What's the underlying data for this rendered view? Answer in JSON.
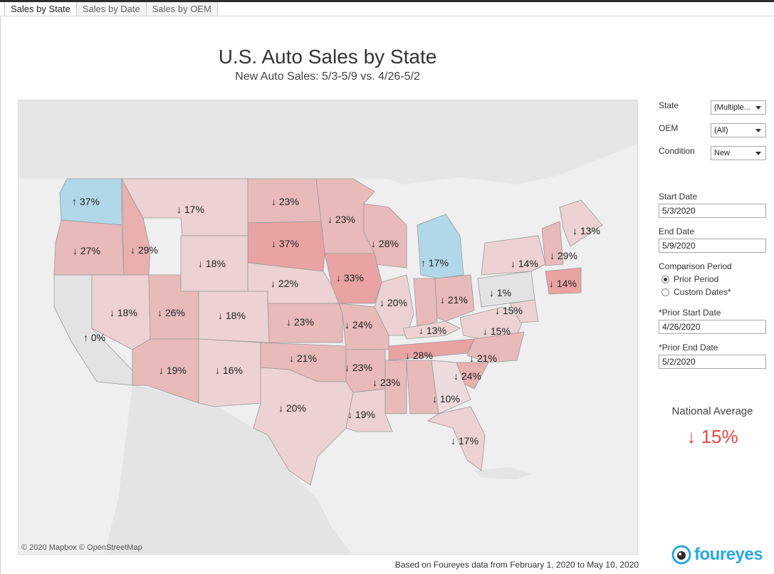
{
  "tabs": [
    {
      "label": "Sales by State",
      "active": true
    },
    {
      "label": "Sales by Date",
      "active": false
    },
    {
      "label": "Sales by OEM",
      "active": false
    }
  ],
  "title": "U.S. Auto Sales by State",
  "subtitle": "New Auto Sales: 5/3-5/9 vs. 4/26-5/2",
  "map": {
    "attribution": "© 2020 Mapbox © OpenStreetMap",
    "colors": {
      "water": "#efefef",
      "land": "#e2e2e2",
      "decline_light": "#ecd2d2",
      "decline_mid": "#e8baba",
      "decline_strong": "#e9a3a3",
      "increase": "#b0d8e8",
      "neutral": "#e3e3e3"
    },
    "labels": [
      {
        "state": "WA",
        "arrow": "↑",
        "value": "37%"
      },
      {
        "state": "MT",
        "arrow": "↓",
        "value": "17%"
      },
      {
        "state": "ND",
        "arrow": "↓",
        "value": "23%"
      },
      {
        "state": "MN",
        "arrow": "↓",
        "value": "23%"
      },
      {
        "state": "ME",
        "arrow": "↓",
        "value": "13%"
      },
      {
        "state": "OR",
        "arrow": "↓",
        "value": "27%"
      },
      {
        "state": "ID",
        "arrow": "↓",
        "value": "29%"
      },
      {
        "state": "SD",
        "arrow": "↓",
        "value": "37%"
      },
      {
        "state": "WI",
        "arrow": "↓",
        "value": "28%"
      },
      {
        "state": "VT",
        "arrow": "↓",
        "value": "29%"
      },
      {
        "state": "WY",
        "arrow": "↓",
        "value": "18%"
      },
      {
        "state": "MI",
        "arrow": "↑",
        "value": "17%"
      },
      {
        "state": "NY",
        "arrow": "↓",
        "value": "14%"
      },
      {
        "state": "IA",
        "arrow": "↓",
        "value": "33%"
      },
      {
        "state": "NE",
        "arrow": "↓",
        "value": "22%"
      },
      {
        "state": "MA",
        "arrow": "↓",
        "value": "14%"
      },
      {
        "state": "PA",
        "arrow": "↓",
        "value": "1%"
      },
      {
        "state": "NV",
        "arrow": "↓",
        "value": "18%"
      },
      {
        "state": "UT",
        "arrow": "↓",
        "value": "26%"
      },
      {
        "state": "CO",
        "arrow": "↓",
        "value": "18%"
      },
      {
        "state": "IL",
        "arrow": "↓",
        "value": "20%"
      },
      {
        "state": "OH",
        "arrow": "↓",
        "value": "21%"
      },
      {
        "state": "MD",
        "arrow": "↓",
        "value": "15%"
      },
      {
        "state": "KS",
        "arrow": "↓",
        "value": "23%"
      },
      {
        "state": "MO",
        "arrow": "↓",
        "value": "24%"
      },
      {
        "state": "KY",
        "arrow": "↓",
        "value": "13%"
      },
      {
        "state": "VA",
        "arrow": "↓",
        "value": "15%"
      },
      {
        "state": "CA",
        "arrow": "↑",
        "value": "0%"
      },
      {
        "state": "OK",
        "arrow": "↓",
        "value": "21%"
      },
      {
        "state": "TN",
        "arrow": "↓",
        "value": "28%"
      },
      {
        "state": "NC",
        "arrow": "↓",
        "value": "21%"
      },
      {
        "state": "AZ",
        "arrow": "↓",
        "value": "19%"
      },
      {
        "state": "NM",
        "arrow": "↓",
        "value": "16%"
      },
      {
        "state": "AR",
        "arrow": "↓",
        "value": "23%"
      },
      {
        "state": "SC",
        "arrow": "↓",
        "value": "24%"
      },
      {
        "state": "MS",
        "arrow": "↓",
        "value": "23%"
      },
      {
        "state": "GA",
        "arrow": "↓",
        "value": "10%"
      },
      {
        "state": "TX",
        "arrow": "↓",
        "value": "20%"
      },
      {
        "state": "LA",
        "arrow": "↓",
        "value": "19%"
      },
      {
        "state": "FL",
        "arrow": "↓",
        "value": "17%"
      }
    ]
  },
  "filters": {
    "state": {
      "label": "State",
      "value": "(Multiple..."
    },
    "oem": {
      "label": "OEM",
      "value": "(All)"
    },
    "condition": {
      "label": "Condition",
      "value": "New"
    }
  },
  "dates": {
    "start_label": "Start Date",
    "start_value": "5/3/2020",
    "end_label": "End Date",
    "end_value": "5/9/2020",
    "comparison_label": "Comparison Period",
    "option_prior": "Prior Period",
    "option_custom": "Custom Dates*",
    "prior_start_label": "*Prior Start Date",
    "prior_start_value": "4/26/2020",
    "prior_end_label": "*Prior End Date",
    "prior_end_value": "5/2/2020"
  },
  "national": {
    "label": "National Average",
    "arrow": "↓",
    "value": "15%",
    "color": "#e8473f"
  },
  "footnote": "Based on Foureyes data from February 1, 2020 to May 10, 2020",
  "logo": {
    "text": "foureyes",
    "color": "#27a9e1"
  }
}
